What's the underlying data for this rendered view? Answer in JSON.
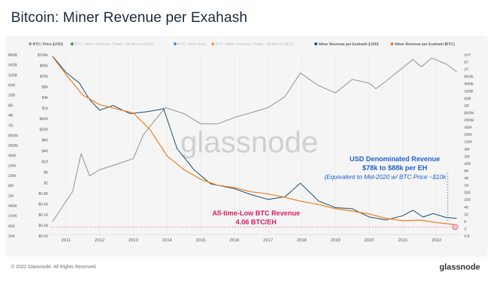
{
  "title": "Bitcoin: Miner Revenue per Exahash",
  "footer": "© 2022 Glassnode. All Rights Reserved.",
  "brand": "glassnode",
  "watermark": "glassnode",
  "legend": [
    {
      "label": "BTC: Price [USD]",
      "color": "#999999",
      "active": true
    },
    {
      "label": "BTC: Miner Revenue (Total) - All Miners [USD]",
      "color": "#2e9e48",
      "active": false
    },
    {
      "label": "BTC: Hash Rate",
      "color": "#3a8fd8",
      "active": false
    },
    {
      "label": "BTC: Miner Revenue (Total) - All Miners [BTC]",
      "color": "#f0a040",
      "active": false
    },
    {
      "label": "Miner Revenue per Exahash [USD]",
      "color": "#1f4f6b",
      "active": true
    },
    {
      "label": "Miner Revenue per Exahash [BTC]",
      "color": "#f07d1a",
      "active": true
    }
  ],
  "annotations": {
    "usd_line1": "USD Denominated Revenue",
    "usd_line2": "$78k to $88k per EH",
    "usd_line3": "(Equivalent to Mid-2020 w/ BTC Price ~$10k",
    "btc_line1": "All-time-Low BTC Revenue",
    "btc_line2": "4.06 BTC/EH"
  },
  "chart_data": {
    "type": "line",
    "title": "Bitcoin: Miner Revenue per Exahash",
    "x_ticks": [
      "2011",
      "2012",
      "2013",
      "2014",
      "2015",
      "2016",
      "2017",
      "2018",
      "2019",
      "2020",
      "2021",
      "2022"
    ],
    "y_axes": {
      "left_outer": [
        "800B",
        "400B",
        "100B",
        "60B",
        "20B",
        "8B",
        "4B",
        "1B",
        "800M",
        "200M",
        "40M",
        "20M",
        "10M",
        "8M",
        "2M",
        "400K",
        "100K",
        "60K",
        "20K"
      ],
      "left_inner": [
        "$100k",
        "$80k",
        "$20k",
        "$8k",
        "$4k",
        "$1k",
        "$600",
        "$200",
        "$80",
        "$40",
        "$10",
        "$6",
        "$2",
        "$0.80",
        "$0.40",
        "$0.10",
        "$0.06",
        "$0.02"
      ],
      "right": [
        "10T",
        "6T",
        "2T",
        "800B",
        "400B",
        "100B",
        "60B",
        "1B",
        "800M",
        "200M",
        "40M",
        "20M",
        "10M",
        "4M",
        "1M",
        "40K",
        "8K",
        "4K",
        "1K",
        "200",
        "100",
        "40",
        "10",
        "6",
        "2",
        "0.8"
      ]
    },
    "series": [
      {
        "name": "BTC: Price [USD]",
        "x": [
          2010.6,
          2011.2,
          2011.45,
          2011.7,
          2012.0,
          2012.5,
          2013.0,
          2013.3,
          2013.95,
          2014.5,
          2015.0,
          2015.5,
          2016.0,
          2016.5,
          2017.0,
          2017.5,
          2017.96,
          2018.5,
          2019.0,
          2019.5,
          2020.0,
          2020.2,
          2020.5,
          2021.0,
          2021.3,
          2021.55,
          2021.86,
          2022.3,
          2022.6
        ],
        "values": [
          0.06,
          0.8,
          20,
          3,
          5,
          8,
          13,
          100,
          1000,
          600,
          250,
          250,
          430,
          650,
          1000,
          2500,
          19000,
          6500,
          3500,
          11000,
          8000,
          5000,
          9500,
          30000,
          60000,
          32000,
          68000,
          40000,
          21000
        ]
      },
      {
        "name": "Miner Revenue per Exahash [USD]",
        "x": [
          2010.6,
          2011.0,
          2011.4,
          2011.7,
          2012.0,
          2012.4,
          2012.9,
          2013.4,
          2013.9,
          2014.3,
          2014.8,
          2015.3,
          2016.0,
          2016.5,
          2017.0,
          2017.5,
          2017.96,
          2018.5,
          2019.0,
          2019.5,
          2020.0,
          2020.5,
          2021.0,
          2021.3,
          2021.6,
          2021.9,
          2022.3,
          2022.6
        ],
        "values": [
          80000,
          20000,
          8000,
          2000,
          800,
          1200,
          600,
          700,
          900,
          30,
          5,
          1.5,
          1.0,
          0.6,
          0.4,
          0.5,
          1.6,
          0.35,
          0.2,
          0.18,
          0.09,
          0.07,
          0.1,
          0.16,
          0.09,
          0.12,
          0.085,
          0.08
        ]
      },
      {
        "name": "Miner Revenue per Exahash [BTC]",
        "x": [
          2010.6,
          2011.0,
          2011.5,
          2012.0,
          2012.5,
          2013.0,
          2013.5,
          2014.0,
          2014.5,
          2015.0,
          2015.5,
          2016.0,
          2016.5,
          2017.0,
          2017.5,
          2018.0,
          2018.5,
          2019.0,
          2019.5,
          2020.0,
          2020.5,
          2021.0,
          2021.5,
          2022.0,
          2022.6
        ],
        "values": [
          6000000000000,
          300000000000,
          10000000000,
          2000000000,
          1000000000,
          500000000,
          30000000,
          400000,
          40000,
          8000,
          3000,
          2000,
          1000,
          700,
          400,
          200,
          120,
          60,
          40,
          25,
          12,
          8,
          9,
          6,
          4.06
        ]
      }
    ],
    "scale": "log"
  }
}
